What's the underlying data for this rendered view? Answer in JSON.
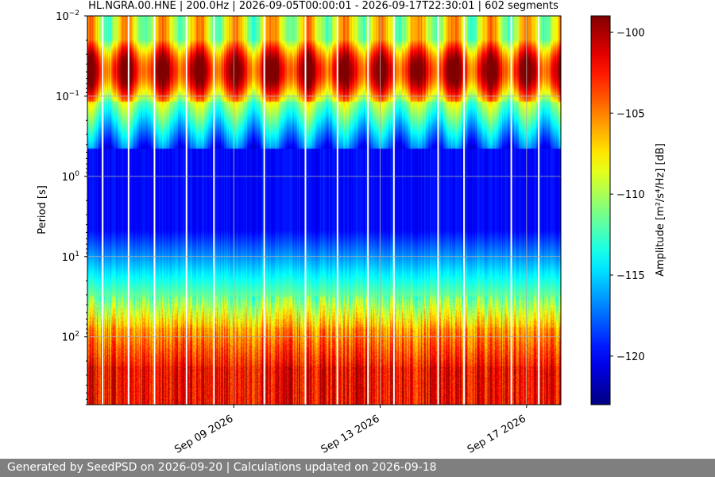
{
  "chart_data": {
    "type": "heatmap",
    "title": "HL.NGRA.00.HNE | 200.0Hz | 2026-09-05T00:00:01 - 2026-09-17T22:30:01 | 602 segments",
    "xlabel": "",
    "ylabel": "Period [s]",
    "x_start": "2026-09-05T00:00:01",
    "x_end": "2026-09-17T22:30:01",
    "x_tick_dates": [
      "2026-09-09",
      "2026-09-13",
      "2026-09-17"
    ],
    "x_tick_labels": [
      "Sep 09 2026",
      "Sep 13 2026",
      "Sep 17 2026"
    ],
    "y_scale": "log",
    "y_inverted": true,
    "y_range_seconds": [
      0.01,
      700
    ],
    "y_ticks": [
      {
        "value": 0.01,
        "base": "10",
        "exp": "−2"
      },
      {
        "value": 0.1,
        "base": "10",
        "exp": "−1"
      },
      {
        "value": 1,
        "base": "10",
        "exp": "0"
      },
      {
        "value": 10,
        "base": "10",
        "exp": "1"
      },
      {
        "value": 100,
        "base": "10",
        "exp": "2"
      }
    ],
    "grid": true,
    "segments": 602,
    "sampling_rate": "200.0Hz",
    "colormap": "jet",
    "colorbar": {
      "label": "Amplitude [m²/s⁴/Hz] [dB]",
      "range_db": [
        -123,
        -99
      ],
      "ticks": [
        -100,
        -105,
        -110,
        -115,
        -120
      ],
      "tick_labels": [
        "−100",
        "−105",
        "−110",
        "−115",
        "−120"
      ]
    },
    "gap_dates": [
      "2026-09-05T10:00",
      "2026-09-06T03:00",
      "2026-09-06T20:00",
      "2026-09-07T17:00",
      "2026-09-08T11:00",
      "2026-09-09T20:00",
      "2026-09-10T23:00",
      "2026-09-11T20:00",
      "2026-09-12T16:00",
      "2026-09-13T09:00",
      "2026-09-14T14:00",
      "2026-09-15T07:00",
      "2026-09-16T14:00",
      "2026-09-17T08:00"
    ]
  },
  "footer": {
    "text": "Generated by SeedPSD on 2026-09-20 | Calculations updated on 2026-09-18"
  }
}
